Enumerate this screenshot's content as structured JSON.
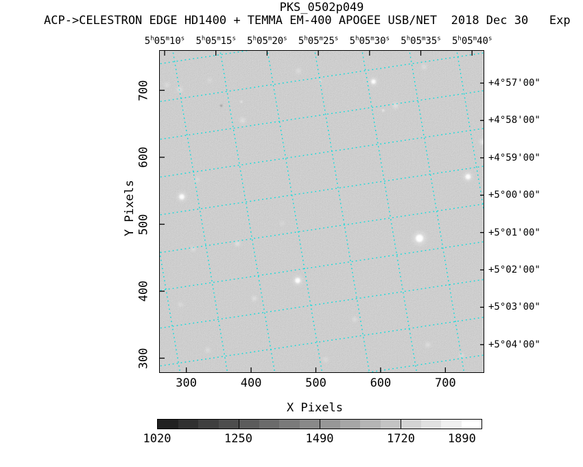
{
  "header": {
    "title": "PKS_0502p049",
    "subtitle": "ACP->CELESTRON EDGE HD1400 + TEMMA EM-400 APOGEE USB/NET  2018 Dec 30   Exp"
  },
  "chart_data": {
    "type": "heatmap",
    "description": "Grayscale CCD star-field image with dotted celestial RA/Dec coordinate grid overlay, pixel axes and stepped grayscale intensity colorbar",
    "xlabel": "X Pixels",
    "ylabel": "Y Pixels",
    "xlim": [
      258,
      760
    ],
    "ylim": [
      278,
      760
    ],
    "x_ticks": [
      300,
      400,
      500,
      600,
      700
    ],
    "y_ticks": [
      300,
      400,
      500,
      600,
      700
    ],
    "ra_ticks": [
      "5h05m10s",
      "5h05m15s",
      "5h05m20s",
      "5h05m25s",
      "5h05m30s",
      "5h05m35s",
      "5h05m40s"
    ],
    "dec_ticks": [
      "+4°57'00\"",
      "+4°58'00\"",
      "+4°59'00\"",
      "+5°00'00\"",
      "+5°01'00\"",
      "+5°02'00\"",
      "+5°03'00\"",
      "+5°04'00\""
    ],
    "grid_color": "#00dcdc",
    "grid_rotation_deg": 9,
    "background_mean_gray": "#9d9d9d",
    "stars": [
      {
        "x": 270,
        "y": 708,
        "r": 3.0,
        "o": 0.35,
        "fz": 1
      },
      {
        "x": 290,
        "y": 701,
        "r": 3.5,
        "o": 0.4,
        "fz": 1
      },
      {
        "x": 336,
        "y": 715,
        "r": 3.0,
        "o": 0.28,
        "fz": 1
      },
      {
        "x": 473,
        "y": 729,
        "r": 3.5,
        "o": 0.32,
        "fz": 1
      },
      {
        "x": 507,
        "y": 714,
        "r": 1.2,
        "o": 0.85,
        "fz": 0
      },
      {
        "x": 667,
        "y": 735,
        "r": 3.5,
        "o": 0.35,
        "fz": 1
      },
      {
        "x": 589,
        "y": 713,
        "r": 3.2,
        "o": 0.95,
        "fz": 0
      },
      {
        "x": 623,
        "y": 677,
        "r": 3.8,
        "o": 0.4,
        "fz": 1
      },
      {
        "x": 604,
        "y": 670,
        "r": 1.6,
        "o": 0.7,
        "fz": 0
      },
      {
        "x": 387,
        "y": 655,
        "r": 3.8,
        "o": 0.38,
        "fz": 1
      },
      {
        "x": 385,
        "y": 683,
        "r": 1.2,
        "o": 0.9,
        "fz": 0
      },
      {
        "x": 354,
        "y": 677,
        "r": 1.0,
        "o": 0.75,
        "fz": 0,
        "dark": 1
      },
      {
        "x": 757,
        "y": 623,
        "r": 3.5,
        "o": 0.5,
        "fz": 1
      },
      {
        "x": 735,
        "y": 571,
        "r": 3.8,
        "o": 0.9,
        "fz": 0
      },
      {
        "x": 293,
        "y": 541,
        "r": 3.8,
        "o": 0.92,
        "fz": 0
      },
      {
        "x": 317,
        "y": 567,
        "r": 3.2,
        "o": 0.3,
        "fz": 1
      },
      {
        "x": 448,
        "y": 501,
        "r": 3.0,
        "o": 0.25,
        "fz": 1
      },
      {
        "x": 660,
        "y": 479,
        "r": 5.5,
        "o": 1.0,
        "fz": 0
      },
      {
        "x": 379,
        "y": 471,
        "r": 3.4,
        "o": 0.45,
        "fz": 1
      },
      {
        "x": 311,
        "y": 463,
        "r": 2.6,
        "o": 0.5,
        "fz": 1
      },
      {
        "x": 472,
        "y": 416,
        "r": 3.8,
        "o": 0.95,
        "fz": 0
      },
      {
        "x": 405,
        "y": 389,
        "r": 3.0,
        "o": 0.5,
        "fz": 1
      },
      {
        "x": 291,
        "y": 380,
        "r": 3.0,
        "o": 0.35,
        "fz": 1
      },
      {
        "x": 560,
        "y": 358,
        "r": 2.6,
        "o": 0.5,
        "fz": 1
      },
      {
        "x": 673,
        "y": 320,
        "r": 3.0,
        "o": 0.45,
        "fz": 1
      },
      {
        "x": 725,
        "y": 304,
        "r": 3.0,
        "o": 0.35,
        "fz": 1
      },
      {
        "x": 515,
        "y": 298,
        "r": 3.4,
        "o": 0.3,
        "fz": 1
      },
      {
        "x": 333,
        "y": 312,
        "r": 3.2,
        "o": 0.35,
        "fz": 1
      }
    ],
    "colorbar": {
      "steps": 16,
      "tick_steps": [
        4,
        8,
        12
      ],
      "labels": [
        {
          "value": 1020,
          "step": 0
        },
        {
          "value": 1250,
          "step": 4
        },
        {
          "value": 1490,
          "step": 8
        },
        {
          "value": 1720,
          "step": 12
        },
        {
          "value": 1890,
          "step": 15
        }
      ],
      "min_gray": "#212121",
      "max_gray": "#ffffff"
    },
    "legend_position": "none",
    "grid_on": true
  }
}
